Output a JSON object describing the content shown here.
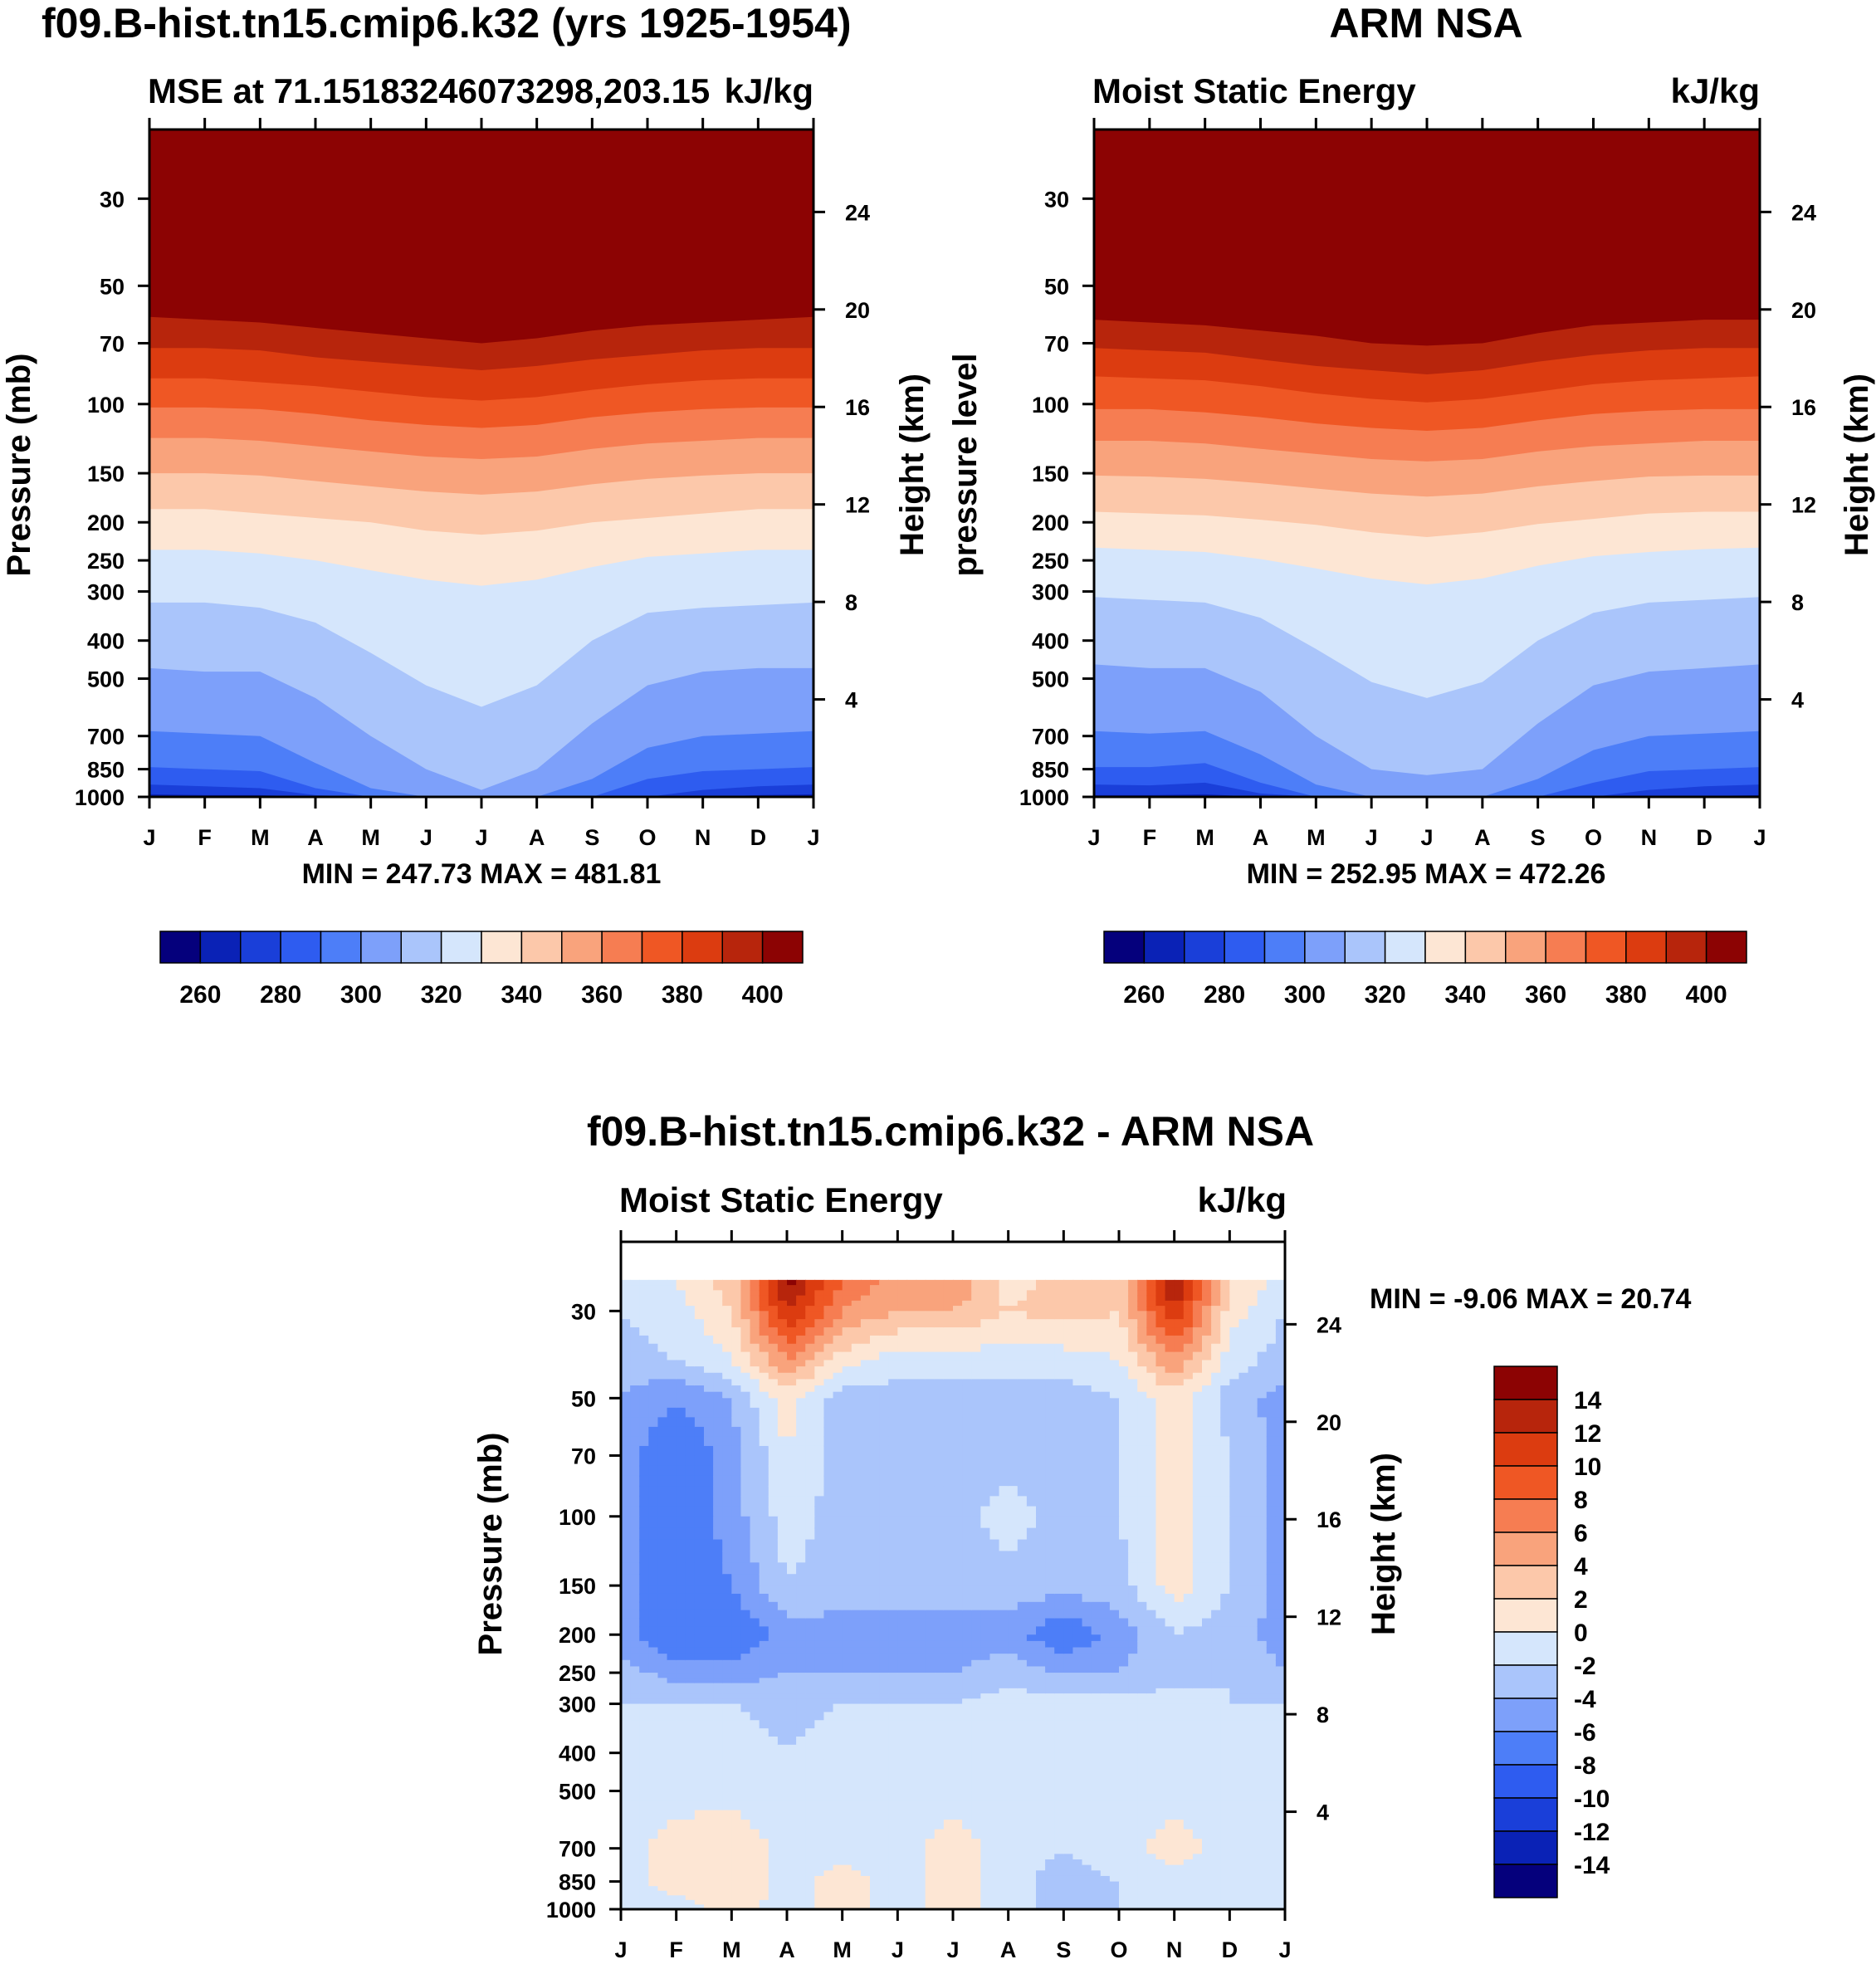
{
  "colors": {
    "palette": [
      "#05007c",
      "#0a22b6",
      "#1a3fd9",
      "#2e5cf0",
      "#4d7ef8",
      "#7da0fa",
      "#aac5fb",
      "#d5e6fc",
      "#fde6d4",
      "#fcc8aa",
      "#f9a37c",
      "#f67d52",
      "#ef5724",
      "#dc3c10",
      "#b7250c",
      "#8c0303"
    ]
  },
  "chart_data": [
    {
      "id": "model",
      "type": "contour",
      "title": "f09.B-hist.tn15.cmip6.k32 (yrs 1925-1954)",
      "left_string": "MSE at 71.15183246073298,203.15",
      "right_string": "kJ/kg",
      "ylabel": "Pressure (mb)",
      "ylabel_right": "Height (km)",
      "months": [
        "J",
        "F",
        "M",
        "A",
        "M",
        "J",
        "J",
        "A",
        "S",
        "O",
        "N",
        "D",
        "J"
      ],
      "pressure_ticks": [
        "30",
        "50",
        "70",
        "100",
        "150",
        "200",
        "250",
        "300",
        "400",
        "500",
        "700",
        "850",
        "1000"
      ],
      "height_ticks": [
        "24",
        "20",
        "16",
        "12",
        "8",
        "4"
      ],
      "stats_text": "MIN = 247.73 MAX = 481.81",
      "levels": [
        250,
        260,
        270,
        280,
        290,
        300,
        310,
        320,
        330,
        340,
        350,
        360,
        370,
        380,
        390,
        400
      ],
      "colorbar_labels": [
        "260",
        "280",
        "300",
        "320",
        "340",
        "360",
        "380",
        "400"
      ],
      "contour_levels_hpa": [
        [
          1000,
          1000,
          1000,
          1000,
          1000,
          1000,
          1000,
          1000,
          1000,
          1000,
          1000,
          1000,
          1000
        ],
        [
          985,
          990,
          990,
          1000,
          1000,
          1000,
          1000,
          1000,
          1000,
          1000,
          1000,
          990,
          985
        ],
        [
          930,
          940,
          950,
          990,
          1000,
          1000,
          1000,
          1000,
          1000,
          1000,
          960,
          940,
          930
        ],
        [
          840,
          850,
          860,
          950,
          1000,
          1000,
          1000,
          1000,
          1000,
          900,
          860,
          850,
          840
        ],
        [
          680,
          690,
          700,
          820,
          950,
          1000,
          1000,
          1000,
          900,
          750,
          700,
          690,
          680
        ],
        [
          470,
          480,
          480,
          560,
          700,
          850,
          960,
          850,
          650,
          520,
          480,
          470,
          470
        ],
        [
          320,
          320,
          330,
          360,
          430,
          520,
          590,
          520,
          400,
          340,
          330,
          325,
          320
        ],
        [
          235,
          235,
          240,
          250,
          265,
          280,
          290,
          280,
          260,
          245,
          240,
          235,
          235
        ],
        [
          185,
          185,
          190,
          195,
          200,
          210,
          215,
          210,
          200,
          195,
          190,
          185,
          185
        ],
        [
          150,
          150,
          152,
          157,
          162,
          167,
          170,
          167,
          160,
          155,
          152,
          150,
          150
        ],
        [
          122,
          122,
          124,
          128,
          132,
          136,
          138,
          136,
          130,
          126,
          124,
          122,
          122
        ],
        [
          102,
          102,
          103,
          106,
          110,
          113,
          115,
          113,
          108,
          105,
          103,
          102,
          102
        ],
        [
          86,
          86,
          88,
          90,
          93,
          96,
          98,
          96,
          92,
          89,
          87,
          86,
          86
        ],
        [
          72,
          72,
          73,
          76,
          78,
          80,
          82,
          80,
          77,
          75,
          73,
          72,
          72
        ],
        [
          60,
          61,
          62,
          64,
          66,
          68,
          70,
          68,
          65,
          63,
          62,
          61,
          60
        ]
      ]
    },
    {
      "id": "obs",
      "type": "contour",
      "title": "ARM NSA",
      "left_string": "Moist Static Energy",
      "right_string": "kJ/kg",
      "ylabel": "pressure level",
      "ylabel_right": "Height (km)",
      "months": [
        "J",
        "F",
        "M",
        "A",
        "M",
        "J",
        "J",
        "A",
        "S",
        "O",
        "N",
        "D",
        "J"
      ],
      "pressure_ticks": [
        "30",
        "50",
        "70",
        "100",
        "150",
        "200",
        "250",
        "300",
        "400",
        "500",
        "700",
        "850",
        "1000"
      ],
      "height_ticks": [
        "24",
        "20",
        "16",
        "12",
        "8",
        "4"
      ],
      "stats_text": "MIN = 252.95 MAX = 472.26",
      "levels": [
        250,
        260,
        270,
        280,
        290,
        300,
        310,
        320,
        330,
        340,
        350,
        360,
        370,
        380,
        390,
        400
      ],
      "colorbar_labels": [
        "260",
        "280",
        "300",
        "320",
        "340",
        "360",
        "380",
        "400"
      ],
      "contour_levels_hpa": [
        [
          1000,
          1000,
          1000,
          1000,
          1000,
          1000,
          1000,
          1000,
          1000,
          1000,
          1000,
          1000,
          1000
        ],
        [
          990,
          990,
          985,
          1000,
          1000,
          1000,
          1000,
          1000,
          1000,
          1000,
          1000,
          995,
          990
        ],
        [
          930,
          935,
          920,
          980,
          1000,
          1000,
          1000,
          1000,
          1000,
          1000,
          960,
          940,
          930
        ],
        [
          840,
          840,
          820,
          920,
          1000,
          1000,
          1000,
          1000,
          1000,
          920,
          860,
          850,
          840
        ],
        [
          680,
          690,
          680,
          780,
          930,
          1000,
          1000,
          1000,
          900,
          760,
          700,
          690,
          680
        ],
        [
          460,
          470,
          470,
          540,
          700,
          850,
          880,
          850,
          650,
          520,
          480,
          470,
          460
        ],
        [
          310,
          315,
          320,
          350,
          420,
          510,
          560,
          510,
          400,
          340,
          320,
          315,
          310
        ],
        [
          232,
          235,
          238,
          248,
          262,
          278,
          288,
          278,
          258,
          244,
          238,
          234,
          232
        ],
        [
          188,
          190,
          192,
          197,
          203,
          212,
          218,
          212,
          202,
          196,
          190,
          188,
          188
        ],
        [
          152,
          153,
          155,
          159,
          164,
          169,
          172,
          169,
          162,
          157,
          153,
          152,
          152
        ],
        [
          124,
          124,
          126,
          130,
          134,
          138,
          140,
          138,
          132,
          128,
          126,
          124,
          124
        ],
        [
          103,
          103,
          105,
          108,
          112,
          115,
          117,
          115,
          110,
          106,
          104,
          103,
          103
        ],
        [
          85,
          86,
          87,
          90,
          94,
          97,
          99,
          97,
          93,
          89,
          87,
          86,
          85
        ],
        [
          72,
          73,
          74,
          77,
          80,
          82,
          84,
          82,
          78,
          75,
          73,
          72,
          72
        ],
        [
          61,
          62,
          63,
          65,
          67,
          70,
          71,
          70,
          66,
          63,
          62,
          61,
          61
        ]
      ]
    },
    {
      "id": "diff",
      "type": "contour",
      "title": "f09.B-hist.tn15.cmip6.k32 - ARM NSA",
      "left_string": "Moist Static Energy",
      "right_string": "kJ/kg",
      "ylabel": "Pressure (mb)",
      "ylabel_right": "Height (km)",
      "months": [
        "J",
        "F",
        "M",
        "A",
        "M",
        "J",
        "J",
        "A",
        "S",
        "O",
        "N",
        "D",
        "J"
      ],
      "pressure_ticks": [
        "30",
        "50",
        "70",
        "100",
        "150",
        "200",
        "250",
        "300",
        "400",
        "500",
        "700",
        "850",
        "1000"
      ],
      "height_ticks": [
        "24",
        "20",
        "16",
        "12",
        "8",
        "4"
      ],
      "stats_text": "MIN =  -9.06 MAX =  20.74",
      "levels": [
        -16,
        -14,
        -12,
        -10,
        -8,
        -6,
        -4,
        -2,
        0,
        2,
        4,
        6,
        8,
        10,
        12,
        14
      ],
      "colorbar_labels": [
        "14",
        "12",
        "10",
        "8",
        "6",
        "4",
        "2",
        "0",
        "-2",
        "-4",
        "-6",
        "-8",
        "-10",
        "-12",
        "-14"
      ],
      "field_rows_hpa": [
        25,
        30,
        40,
        50,
        70,
        100,
        150,
        200,
        250,
        300,
        400,
        500,
        700,
        850,
        1000
      ],
      "field_kjkg": [
        [
          -1,
          0,
          3,
          15,
          8,
          5,
          6,
          1,
          3,
          3,
          15,
          2,
          -1
        ],
        [
          -2,
          -1,
          2,
          12,
          6,
          4,
          4,
          2,
          3,
          2,
          12,
          1,
          -2
        ],
        [
          -3,
          -2,
          0,
          6,
          1,
          -1,
          -1,
          -1,
          -1,
          0,
          6,
          -1,
          -3
        ],
        [
          -4,
          -6,
          -4,
          1,
          -3,
          -3,
          -3,
          -3,
          -3,
          -2,
          1,
          -3,
          -5
        ],
        [
          -5,
          -8,
          -5,
          0,
          -3,
          -3,
          -3,
          -3,
          -3,
          -2,
          1,
          -2,
          -5
        ],
        [
          -5,
          -8,
          -5,
          -1,
          -3,
          -3,
          -3,
          -1,
          -3,
          -2,
          1,
          -2,
          -5
        ],
        [
          -5,
          -8,
          -6,
          -2,
          -3,
          -3,
          -3,
          -3,
          -3,
          -3,
          1,
          -2,
          -5
        ],
        [
          -5,
          -8,
          -8,
          -5,
          -5,
          -5,
          -5,
          -5,
          -8,
          -5,
          -2,
          -3,
          -5
        ],
        [
          -3,
          -5,
          -5,
          -4,
          -4,
          -4,
          -4,
          -3,
          -4,
          -4,
          -3,
          -2,
          -4
        ],
        [
          -2,
          -2,
          -2,
          -3,
          -2,
          -2,
          -2,
          -1,
          -1,
          -1,
          -1,
          -2,
          -2
        ],
        [
          -1,
          -1,
          -1,
          -2,
          -1,
          -1,
          -1,
          -1,
          -1,
          -1,
          -1,
          -2,
          -1
        ],
        [
          -1,
          -1,
          -1,
          -2,
          -1,
          -1,
          -1,
          -1,
          -1,
          -1,
          -1,
          -2,
          -1
        ],
        [
          -1,
          1,
          2,
          -1,
          -1,
          -1,
          1,
          -1,
          -2,
          -1,
          1,
          -1,
          -1
        ],
        [
          -1,
          1,
          2,
          -1,
          1,
          -1,
          1,
          -1,
          -3,
          -2,
          -1,
          -1,
          -1
        ],
        [
          -2,
          -1,
          1,
          -1,
          1,
          -1,
          1,
          -1,
          -3,
          -2,
          -1,
          -1,
          -2
        ]
      ]
    }
  ]
}
